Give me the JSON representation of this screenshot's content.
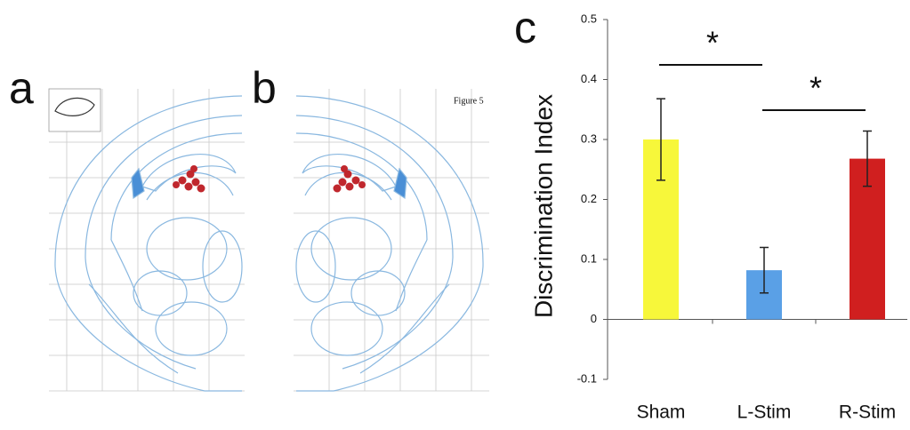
{
  "panel_labels": [
    "a",
    "b",
    "c"
  ],
  "atlas_caption": "Figure 5",
  "chart_data": {
    "type": "bar",
    "y_label": "Discrimination Index",
    "categories": [
      "Sham",
      "L-Stim",
      "R-Stim"
    ],
    "series": [
      {
        "values": [
          0.3,
          0.082,
          0.268
        ],
        "errors": [
          0.068,
          0.038,
          0.046
        ],
        "colors": [
          "#f7f73a",
          "#5aa0e6",
          "#d01f1f"
        ]
      }
    ],
    "ylim": [
      -0.1,
      0.5
    ],
    "yticks": [
      -0.1,
      0,
      0.1,
      0.2,
      0.3,
      0.4,
      0.5
    ],
    "annotations": [
      "*",
      "*"
    ]
  }
}
